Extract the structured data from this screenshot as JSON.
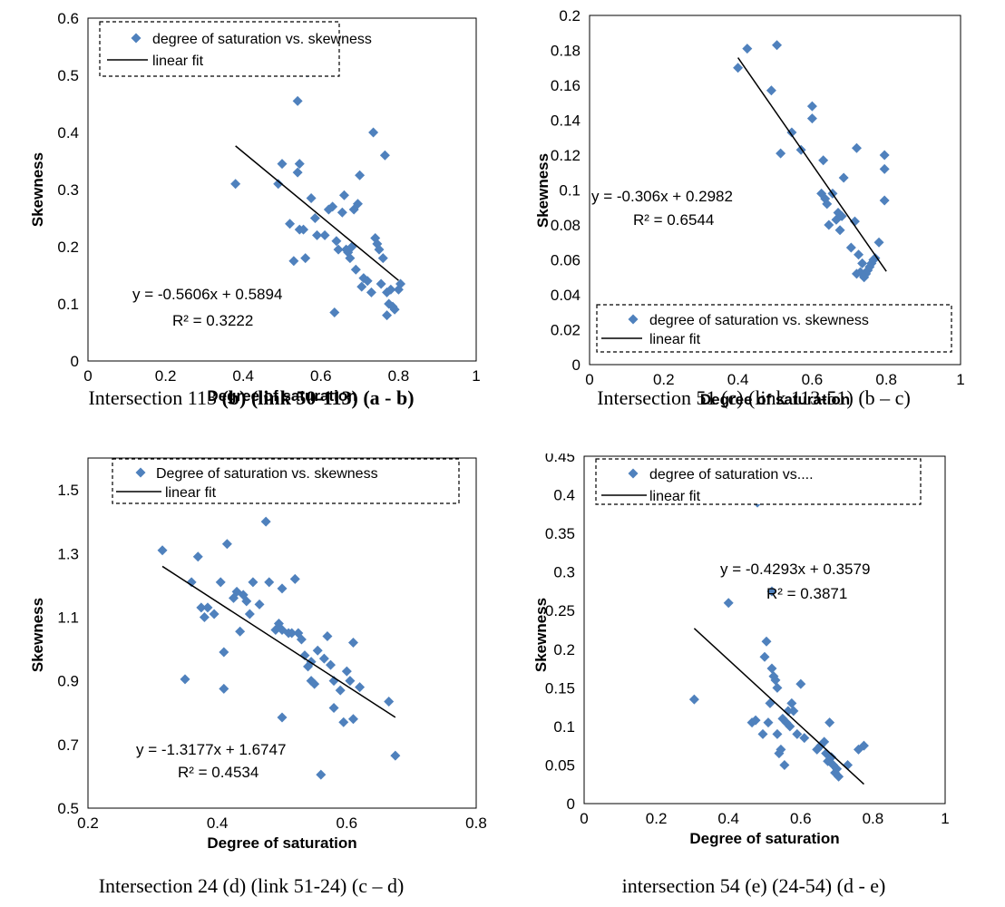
{
  "captions": [
    {
      "prefix": "Intersection 113 ",
      "bold": "(b) (link 50-113) (a - b)"
    },
    {
      "prefix": "Intersection 51 (c) (link 113-51) (b – c)",
      "bold": ""
    },
    {
      "prefix": "Intersection 24 (d) (link 51-24) (c – d)",
      "bold": ""
    },
    {
      "prefix": "intersection 54 (e) (24-54) (d - e)",
      "bold": ""
    }
  ],
  "colors": {
    "marker": "#4F81BD",
    "fit": "#000000",
    "axis": "#000000"
  },
  "chart_data": [
    {
      "type": "scatter",
      "xlabel": "Degree of saturation",
      "ylabel": "Skewness",
      "xlim": [
        0,
        1
      ],
      "ylim": [
        0,
        0.6
      ],
      "xticks": [
        "0",
        "0.2",
        "0.4",
        "0.6",
        "0.8",
        "1"
      ],
      "yticks": [
        "0",
        "0.1",
        "0.2",
        "0.3",
        "0.4",
        "0.5",
        "0.6"
      ],
      "legend": {
        "position": "top",
        "series": "degree of saturation vs. skewness",
        "fit": "linear fit"
      },
      "equation": "y = -0.5606x + 0.5894",
      "r2": "R² = 0.3222",
      "fit": {
        "slope": -0.5606,
        "intercept": 0.5894,
        "x_range": [
          0.38,
          0.8
        ]
      },
      "points": [
        [
          0.38,
          0.31
        ],
        [
          0.49,
          0.31
        ],
        [
          0.5,
          0.345
        ],
        [
          0.52,
          0.24
        ],
        [
          0.53,
          0.175
        ],
        [
          0.54,
          0.455
        ],
        [
          0.54,
          0.33
        ],
        [
          0.545,
          0.345
        ],
        [
          0.545,
          0.23
        ],
        [
          0.555,
          0.23
        ],
        [
          0.56,
          0.18
        ],
        [
          0.565,
          0.505
        ],
        [
          0.575,
          0.285
        ],
        [
          0.585,
          0.25
        ],
        [
          0.59,
          0.22
        ],
        [
          0.61,
          0.22
        ],
        [
          0.62,
          0.265
        ],
        [
          0.63,
          0.27
        ],
        [
          0.635,
          0.085
        ],
        [
          0.64,
          0.21
        ],
        [
          0.645,
          0.195
        ],
        [
          0.655,
          0.26
        ],
        [
          0.66,
          0.29
        ],
        [
          0.665,
          0.195
        ],
        [
          0.67,
          0.19
        ],
        [
          0.675,
          0.18
        ],
        [
          0.68,
          0.2
        ],
        [
          0.685,
          0.265
        ],
        [
          0.69,
          0.16
        ],
        [
          0.695,
          0.275
        ],
        [
          0.7,
          0.325
        ],
        [
          0.705,
          0.13
        ],
        [
          0.71,
          0.145
        ],
        [
          0.72,
          0.14
        ],
        [
          0.73,
          0.12
        ],
        [
          0.735,
          0.4
        ],
        [
          0.74,
          0.215
        ],
        [
          0.745,
          0.205
        ],
        [
          0.75,
          0.195
        ],
        [
          0.755,
          0.135
        ],
        [
          0.76,
          0.18
        ],
        [
          0.765,
          0.36
        ],
        [
          0.77,
          0.12
        ],
        [
          0.77,
          0.08
        ],
        [
          0.775,
          0.1
        ],
        [
          0.78,
          0.125
        ],
        [
          0.785,
          0.095
        ],
        [
          0.79,
          0.09
        ],
        [
          0.8,
          0.125
        ],
        [
          0.805,
          0.135
        ]
      ]
    },
    {
      "type": "scatter",
      "xlabel": "Degree of saturation",
      "ylabel": "Skewness",
      "xlim": [
        0,
        1
      ],
      "ylim": [
        0,
        0.2
      ],
      "xticks": [
        "0",
        "0.2",
        "0.4",
        "0.6",
        "0.8",
        "1"
      ],
      "yticks": [
        "0",
        "0.02",
        "0.04",
        "0.06",
        "0.08",
        "0.1",
        "0.12",
        "0.14",
        "0.16",
        "0.18",
        "0.2"
      ],
      "legend": {
        "position": "bottom",
        "series": "degree of saturation vs. skewness",
        "fit": "linear fit"
      },
      "equation": "y = -0.306x + 0.2982",
      "r2": "R² = 0.6544",
      "fit": {
        "slope": -0.306,
        "intercept": 0.2982,
        "x_range": [
          0.4,
          0.8
        ]
      },
      "points": [
        [
          0.4,
          0.17
        ],
        [
          0.425,
          0.181
        ],
        [
          0.49,
          0.157
        ],
        [
          0.505,
          0.183
        ],
        [
          0.515,
          0.121
        ],
        [
          0.545,
          0.133
        ],
        [
          0.57,
          0.123
        ],
        [
          0.6,
          0.148
        ],
        [
          0.6,
          0.141
        ],
        [
          0.625,
          0.098
        ],
        [
          0.63,
          0.117
        ],
        [
          0.635,
          0.095
        ],
        [
          0.64,
          0.092
        ],
        [
          0.645,
          0.08
        ],
        [
          0.655,
          0.098
        ],
        [
          0.665,
          0.083
        ],
        [
          0.67,
          0.087
        ],
        [
          0.675,
          0.077
        ],
        [
          0.68,
          0.085
        ],
        [
          0.685,
          0.107
        ],
        [
          0.705,
          0.067
        ],
        [
          0.715,
          0.082
        ],
        [
          0.72,
          0.124
        ],
        [
          0.72,
          0.052
        ],
        [
          0.725,
          0.063
        ],
        [
          0.73,
          0.053
        ],
        [
          0.735,
          0.058
        ],
        [
          0.74,
          0.05
        ],
        [
          0.745,
          0.052
        ],
        [
          0.75,
          0.054
        ],
        [
          0.755,
          0.056
        ],
        [
          0.76,
          0.058
        ],
        [
          0.765,
          0.06
        ],
        [
          0.77,
          0.061
        ],
        [
          0.78,
          0.07
        ],
        [
          0.795,
          0.12
        ],
        [
          0.795,
          0.112
        ],
        [
          0.795,
          0.094
        ]
      ]
    },
    {
      "type": "scatter",
      "xlabel": "Degree of saturation",
      "ylabel": "Skewness",
      "xlim": [
        0.2,
        0.8
      ],
      "ylim": [
        0.5,
        1.6
      ],
      "xticks": [
        "0.2",
        "0.4",
        "0.6",
        "0.8"
      ],
      "yticks": [
        "0.5",
        "0.7",
        "0.9",
        "1.1",
        "1.3",
        "1.5"
      ],
      "legend": {
        "position": "top",
        "series": "Degree of saturation vs. skewness",
        "fit": "linear fit"
      },
      "equation": "y = -1.3177x + 1.6747",
      "r2": "R² = 0.4534",
      "fit": {
        "slope": -1.3177,
        "intercept": 1.6747,
        "x_range": [
          0.315,
          0.675
        ]
      },
      "points": [
        [
          0.315,
          1.31
        ],
        [
          0.35,
          0.905
        ],
        [
          0.36,
          1.21
        ],
        [
          0.37,
          1.29
        ],
        [
          0.375,
          1.13
        ],
        [
          0.38,
          1.1
        ],
        [
          0.385,
          1.13
        ],
        [
          0.395,
          1.11
        ],
        [
          0.405,
          1.21
        ],
        [
          0.41,
          0.99
        ],
        [
          0.41,
          0.875
        ],
        [
          0.415,
          1.33
        ],
        [
          0.425,
          1.16
        ],
        [
          0.43,
          1.18
        ],
        [
          0.435,
          1.055
        ],
        [
          0.44,
          1.17
        ],
        [
          0.445,
          1.15
        ],
        [
          0.45,
          1.11
        ],
        [
          0.455,
          1.21
        ],
        [
          0.465,
          1.14
        ],
        [
          0.475,
          1.4
        ],
        [
          0.48,
          1.21
        ],
        [
          0.49,
          1.06
        ],
        [
          0.495,
          1.08
        ],
        [
          0.5,
          1.19
        ],
        [
          0.5,
          1.06
        ],
        [
          0.5,
          0.785
        ],
        [
          0.51,
          1.05
        ],
        [
          0.515,
          1.05
        ],
        [
          0.52,
          1.22
        ],
        [
          0.525,
          1.05
        ],
        [
          0.53,
          1.03
        ],
        [
          0.535,
          0.98
        ],
        [
          0.54,
          0.945
        ],
        [
          0.545,
          0.9
        ],
        [
          0.545,
          0.96
        ],
        [
          0.55,
          0.89
        ],
        [
          0.555,
          0.995
        ],
        [
          0.56,
          0.605
        ],
        [
          0.565,
          0.97
        ],
        [
          0.57,
          1.04
        ],
        [
          0.575,
          0.95
        ],
        [
          0.58,
          0.9
        ],
        [
          0.58,
          0.815
        ],
        [
          0.59,
          0.87
        ],
        [
          0.595,
          0.77
        ],
        [
          0.6,
          0.93
        ],
        [
          0.605,
          0.9
        ],
        [
          0.61,
          1.02
        ],
        [
          0.61,
          0.78
        ],
        [
          0.62,
          0.88
        ],
        [
          0.665,
          0.835
        ],
        [
          0.675,
          0.665
        ]
      ]
    },
    {
      "type": "scatter",
      "xlabel": "Degree of saturation",
      "ylabel": "Skewness",
      "xlim": [
        0,
        1
      ],
      "ylim": [
        0,
        0.45
      ],
      "xticks": [
        "0",
        "0.2",
        "0.4",
        "0.6",
        "0.8",
        "1"
      ],
      "yticks": [
        "0",
        "0.05",
        "0.1",
        "0.15",
        "0.2",
        "0.25",
        "0.3",
        "0.35",
        "0.4",
        "0.45"
      ],
      "legend": {
        "position": "top",
        "series": "degree of saturation vs....",
        "fit": "linear fit"
      },
      "equation": "y = -0.4293x + 0.3579",
      "r2": "R² = 0.3871",
      "fit": {
        "slope": -0.4293,
        "intercept": 0.3579,
        "x_range": [
          0.305,
          0.775
        ]
      },
      "points": [
        [
          0.305,
          0.135
        ],
        [
          0.4,
          0.26
        ],
        [
          0.465,
          0.105
        ],
        [
          0.475,
          0.108
        ],
        [
          0.48,
          0.39
        ],
        [
          0.495,
          0.09
        ],
        [
          0.5,
          0.19
        ],
        [
          0.505,
          0.21
        ],
        [
          0.51,
          0.105
        ],
        [
          0.515,
          0.13
        ],
        [
          0.52,
          0.175
        ],
        [
          0.52,
          0.275
        ],
        [
          0.525,
          0.165
        ],
        [
          0.53,
          0.16
        ],
        [
          0.535,
          0.15
        ],
        [
          0.535,
          0.09
        ],
        [
          0.54,
          0.065
        ],
        [
          0.545,
          0.07
        ],
        [
          0.55,
          0.11
        ],
        [
          0.555,
          0.05
        ],
        [
          0.56,
          0.105
        ],
        [
          0.565,
          0.12
        ],
        [
          0.57,
          0.1
        ],
        [
          0.575,
          0.13
        ],
        [
          0.58,
          0.12
        ],
        [
          0.59,
          0.09
        ],
        [
          0.6,
          0.155
        ],
        [
          0.61,
          0.085
        ],
        [
          0.645,
          0.07
        ],
        [
          0.655,
          0.075
        ],
        [
          0.665,
          0.08
        ],
        [
          0.67,
          0.065
        ],
        [
          0.675,
          0.055
        ],
        [
          0.68,
          0.105
        ],
        [
          0.685,
          0.06
        ],
        [
          0.69,
          0.05
        ],
        [
          0.695,
          0.04
        ],
        [
          0.7,
          0.045
        ],
        [
          0.705,
          0.035
        ],
        [
          0.73,
          0.05
        ],
        [
          0.76,
          0.07
        ],
        [
          0.775,
          0.075
        ]
      ]
    }
  ]
}
